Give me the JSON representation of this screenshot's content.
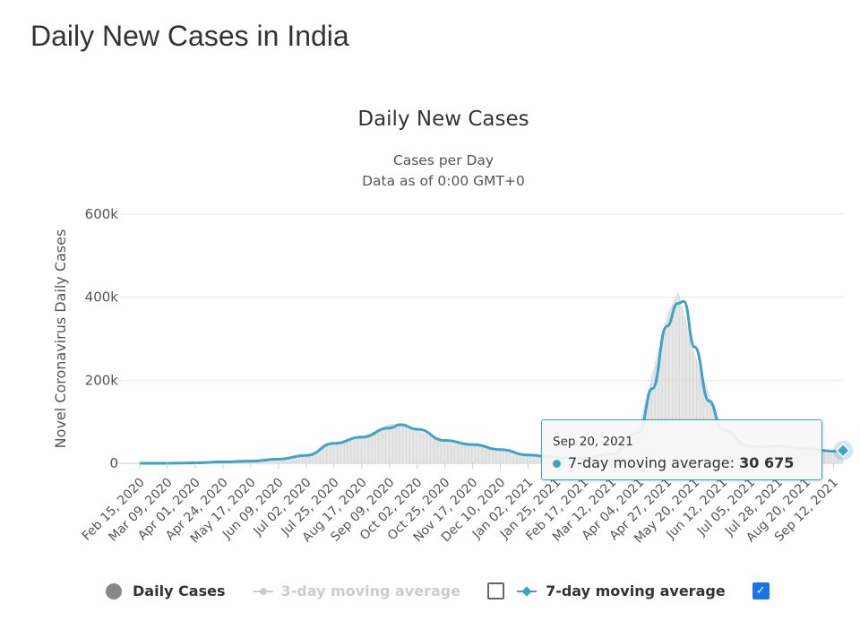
{
  "page_title": "Daily New Cases in India",
  "chart_data": {
    "type": "bar",
    "title": "Daily New Cases",
    "subtitle_lines": [
      "Cases per Day",
      "Data as of 0:00 GMT+0"
    ],
    "ylabel": "Novel Coronavirus Daily Cases",
    "xlabel": "",
    "ylim": [
      0,
      600000
    ],
    "y_ticks": [
      {
        "value": 0,
        "label": "0"
      },
      {
        "value": 200000,
        "label": "200k"
      },
      {
        "value": 400000,
        "label": "400k"
      },
      {
        "value": 600000,
        "label": "600k"
      }
    ],
    "x_tick_labels": [
      "Feb 15, 2020",
      "Mar 09, 2020",
      "Apr 01, 2020",
      "Apr 24, 2020",
      "May 17, 2020",
      "Jun 09, 2020",
      "Jul 02, 2020",
      "Jul 25, 2020",
      "Aug 17, 2020",
      "Sep 09, 2020",
      "Oct 02, 2020",
      "Oct 25, 2020",
      "Nov 17, 2020",
      "Dec 10, 2020",
      "Jan 02, 2021",
      "Jan 25, 2021",
      "Feb 17, 2021",
      "Mar 12, 2021",
      "Apr 04, 2021",
      "Apr 27, 2021",
      "May 20, 2021",
      "Jun 12, 2021",
      "Jul 05, 2021",
      "Jul 28, 2021",
      "Aug 20, 2021",
      "Sep 12, 2021"
    ],
    "grid": true,
    "legend_position": "bottom",
    "series": [
      {
        "name": "Daily Cases",
        "type": "bar",
        "color": "#d9d9d9",
        "x": [
          "Feb 15, 2020",
          "Apr 01, 2020",
          "May 17, 2020",
          "Jun 09, 2020",
          "Jul 02, 2020",
          "Jul 25, 2020",
          "Aug 17, 2020",
          "Sep 09, 2020",
          "Sep 18, 2020",
          "Oct 02, 2020",
          "Oct 25, 2020",
          "Nov 17, 2020",
          "Dec 10, 2020",
          "Jan 02, 2021",
          "Jan 25, 2021",
          "Feb 17, 2021",
          "Mar 12, 2021",
          "Apr 04, 2021",
          "Apr 27, 2021",
          "May 06, 2021",
          "May 20, 2021",
          "Jun 12, 2021",
          "Jul 05, 2021",
          "Jul 28, 2021",
          "Aug 20, 2021",
          "Sep 12, 2021",
          "Sep 20, 2021"
        ],
        "values": [
          0,
          1500,
          5000,
          10000,
          20000,
          48000,
          65000,
          95000,
          93000,
          80000,
          50000,
          45000,
          30000,
          20000,
          14000,
          12000,
          24000,
          95000,
          360000,
          414000,
          260000,
          80000,
          40000,
          43000,
          36000,
          28000,
          30000
        ]
      },
      {
        "name": "3-day moving average",
        "type": "line",
        "color": "#cccccc",
        "visible": false,
        "values": []
      },
      {
        "name": "7-day moving average",
        "type": "line",
        "color": "#3ea3c6",
        "visible": true,
        "x": [
          "Feb 15, 2020",
          "Mar 09, 2020",
          "Apr 01, 2020",
          "Apr 24, 2020",
          "May 17, 2020",
          "Jun 09, 2020",
          "Jul 02, 2020",
          "Jul 25, 2020",
          "Aug 17, 2020",
          "Sep 09, 2020",
          "Sep 18, 2020",
          "Oct 02, 2020",
          "Oct 25, 2020",
          "Nov 17, 2020",
          "Dec 10, 2020",
          "Jan 02, 2021",
          "Jan 25, 2021",
          "Feb 17, 2021",
          "Mar 12, 2021",
          "Apr 04, 2021",
          "Apr 15, 2021",
          "Apr 27, 2021",
          "May 06, 2021",
          "May 11, 2021",
          "May 20, 2021",
          "Jun 01, 2021",
          "Jun 12, 2021",
          "Jul 05, 2021",
          "Jul 28, 2021",
          "Aug 20, 2021",
          "Sep 12, 2021",
          "Sep 20, 2021"
        ],
        "values": [
          0,
          100,
          1000,
          3500,
          5000,
          10000,
          19000,
          48000,
          63000,
          85000,
          93000,
          82000,
          55000,
          45000,
          33000,
          20000,
          14000,
          12000,
          22000,
          75000,
          180000,
          330000,
          385000,
          390000,
          280000,
          150000,
          80000,
          40000,
          41000,
          36000,
          29000,
          30675
        ]
      }
    ]
  },
  "tooltip": {
    "date": "Sep 20, 2021",
    "series_label": "7-day moving average:",
    "value": "30 675"
  },
  "legend": {
    "items": [
      {
        "label": "Daily Cases",
        "color": "#888888"
      },
      {
        "label": "3-day moving average",
        "color": "#cccccc",
        "checked": false
      },
      {
        "label": "7-day moving average",
        "color": "#3ea3c6",
        "checked": true
      }
    ]
  }
}
